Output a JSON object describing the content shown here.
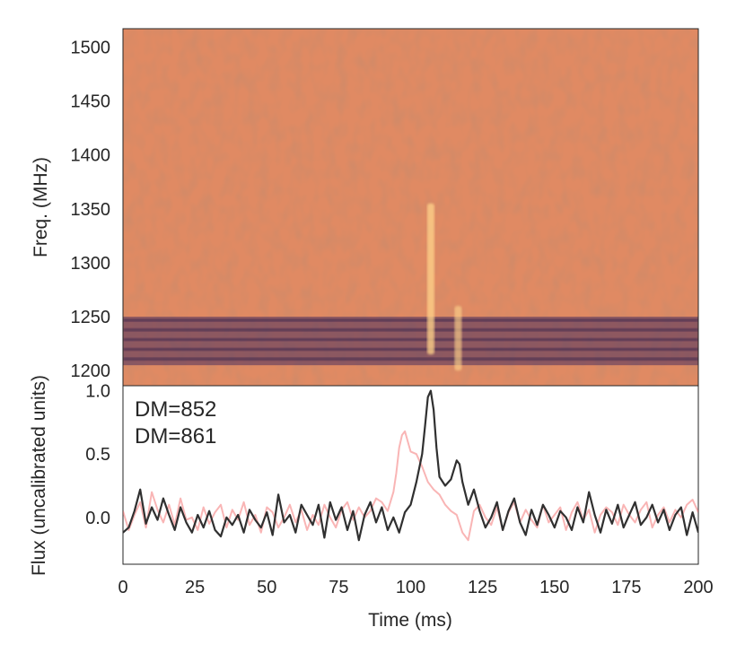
{
  "chart_data": [
    {
      "type": "heatmap",
      "title": "",
      "ylabel": "Freq. (MHz)",
      "xlim": [
        0,
        200
      ],
      "ylim": [
        1186,
        1517
      ],
      "yticks": [
        1200,
        1250,
        1300,
        1350,
        1400,
        1450,
        1500
      ],
      "colormap": "magma",
      "grid": false,
      "bursts": [
        {
          "time_ms": 107,
          "freq_range_mhz": [
            1215,
            1355
          ],
          "strength": 0.9
        },
        {
          "time_ms": 116.5,
          "freq_range_mhz": [
            1200,
            1260
          ],
          "strength": 0.75
        }
      ],
      "dark_band_mhz": [
        1205,
        1250
      ]
    },
    {
      "type": "line",
      "xlabel": "Time (ms)",
      "ylabel": "Flux (uncalibrated units)",
      "xlim": [
        0,
        200
      ],
      "ylim": [
        -0.37,
        1.04
      ],
      "xticks": [
        0,
        25,
        50,
        75,
        100,
        125,
        150,
        175,
        200
      ],
      "yticks": [
        0.0,
        0.5,
        1.0
      ],
      "yticklabels": [
        "0.0",
        "0.5",
        "1.0"
      ],
      "grid": false,
      "legend_position": "top-left",
      "series": [
        {
          "name": "DM=852",
          "color": "#303030",
          "x": [
            0,
            2,
            4,
            6,
            8,
            10,
            12,
            14,
            16,
            18,
            20,
            22,
            24,
            26,
            28,
            30,
            32,
            34,
            36,
            38,
            40,
            42,
            44,
            46,
            48,
            50,
            52,
            54,
            56,
            58,
            60,
            62,
            64,
            66,
            68,
            70,
            72,
            74,
            76,
            78,
            80,
            82,
            84,
            86,
            88,
            90,
            92,
            94,
            96,
            98,
            100,
            102,
            104,
            105,
            106,
            107,
            108,
            109,
            110,
            112,
            114,
            116,
            117,
            118,
            120,
            122,
            124,
            126,
            128,
            130,
            132,
            134,
            136,
            138,
            140,
            142,
            144,
            146,
            148,
            150,
            152,
            154,
            156,
            158,
            160,
            162,
            164,
            166,
            168,
            170,
            172,
            174,
            176,
            178,
            180,
            182,
            184,
            186,
            188,
            190,
            192,
            194,
            196,
            198,
            200
          ],
          "values": [
            -0.12,
            -0.08,
            0.05,
            0.22,
            -0.05,
            0.08,
            -0.02,
            0.15,
            0.02,
            -0.1,
            0.08,
            -0.04,
            -0.12,
            0.02,
            -0.08,
            0.05,
            -0.1,
            -0.15,
            0.0,
            -0.06,
            0.02,
            -0.12,
            0.06,
            -0.02,
            -0.08,
            0.04,
            -0.14,
            0.18,
            -0.04,
            0.02,
            -0.12,
            0.1,
            0.02,
            -0.06,
            0.1,
            -0.16,
            0.12,
            -0.02,
            0.08,
            -0.1,
            0.05,
            -0.18,
            0.02,
            0.12,
            -0.04,
            0.08,
            -0.1,
            0.0,
            -0.12,
            0.04,
            0.1,
            0.28,
            0.5,
            0.72,
            0.95,
            1.0,
            0.85,
            0.55,
            0.32,
            0.25,
            0.3,
            0.45,
            0.42,
            0.28,
            0.1,
            0.22,
            0.05,
            -0.08,
            0.0,
            0.12,
            -0.1,
            0.05,
            0.15,
            -0.04,
            -0.14,
            0.06,
            -0.06,
            0.1,
            0.02,
            -0.08,
            0.05,
            0.0,
            -0.1,
            0.08,
            -0.04,
            0.2,
            0.02,
            -0.12,
            0.06,
            -0.05,
            0.1,
            -0.08,
            0.02,
            0.12,
            -0.06,
            0.0,
            0.1,
            -0.04,
            0.06,
            -0.1,
            0.02,
            0.08,
            -0.14,
            0.04,
            -0.12
          ]
        },
        {
          "name": "DM=861",
          "color": "#f25c5c",
          "x": [
            0,
            2,
            4,
            6,
            8,
            10,
            12,
            14,
            16,
            18,
            20,
            22,
            24,
            26,
            28,
            30,
            32,
            34,
            36,
            38,
            40,
            42,
            44,
            46,
            48,
            50,
            52,
            54,
            56,
            58,
            60,
            62,
            64,
            66,
            68,
            70,
            72,
            74,
            76,
            78,
            80,
            82,
            84,
            86,
            88,
            90,
            92,
            94,
            95,
            96,
            97,
            98,
            99,
            100,
            102,
            104,
            106,
            108,
            110,
            112,
            114,
            116,
            118,
            120,
            122,
            124,
            126,
            128,
            130,
            132,
            134,
            136,
            138,
            140,
            142,
            144,
            146,
            148,
            150,
            152,
            154,
            156,
            158,
            160,
            162,
            164,
            166,
            168,
            170,
            172,
            174,
            176,
            178,
            180,
            182,
            184,
            186,
            188,
            190,
            192,
            194,
            196,
            198,
            200
          ],
          "values": [
            0.05,
            -0.1,
            0.02,
            0.12,
            -0.08,
            0.2,
            0.06,
            -0.04,
            0.1,
            -0.06,
            0.15,
            -0.02,
            0.0,
            -0.1,
            0.08,
            -0.05,
            0.04,
            0.1,
            -0.08,
            0.06,
            -0.02,
            0.12,
            -0.06,
            0.02,
            -0.12,
            0.08,
            0.04,
            -0.08,
            0.0,
            0.1,
            -0.04,
            0.06,
            -0.1,
            0.02,
            -0.06,
            0.1,
            0.0,
            -0.08,
            0.06,
            0.12,
            -0.02,
            0.08,
            0.0,
            0.05,
            0.15,
            0.12,
            0.05,
            0.2,
            0.35,
            0.55,
            0.65,
            0.68,
            0.6,
            0.52,
            0.5,
            0.4,
            0.28,
            0.22,
            0.18,
            0.1,
            0.05,
            0.02,
            -0.12,
            -0.18,
            0.05,
            0.1,
            0.0,
            -0.06,
            0.08,
            -0.1,
            0.04,
            0.12,
            -0.04,
            0.06,
            -0.02,
            -0.08,
            0.1,
            -0.04,
            0.02,
            0.08,
            -0.1,
            0.04,
            0.12,
            -0.02,
            0.06,
            -0.12,
            0.02,
            0.08,
            0.04,
            -0.06,
            0.1,
            0.02,
            -0.04,
            0.06,
            0.12,
            -0.08,
            0.02,
            0.08,
            -0.04,
            0.06,
            0.0,
            0.1,
            0.14,
            0.04
          ]
        }
      ]
    }
  ]
}
